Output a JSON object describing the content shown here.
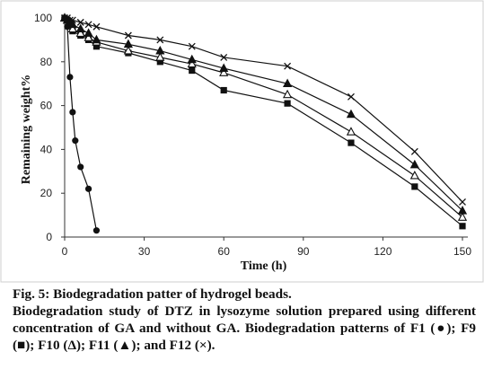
{
  "chart_data": {
    "type": "line",
    "xlabel": "Time (h)",
    "ylabel": "Remaining weight%",
    "xlim": [
      0,
      150
    ],
    "ylim": [
      0,
      100
    ],
    "xticks": [
      0,
      30,
      60,
      90,
      120,
      150
    ],
    "yticks": [
      0,
      20,
      40,
      60,
      80,
      100
    ],
    "grid": false,
    "legend": "none",
    "series": [
      {
        "marker": "circle",
        "color": "#111111",
        "x": [
          0,
          1,
          2,
          3,
          4,
          6,
          9,
          12
        ],
        "y": [
          100,
          96,
          73,
          57,
          44,
          32,
          22,
          3
        ]
      },
      {
        "marker": "square",
        "color": "#111111",
        "x": [
          0,
          1,
          2,
          3,
          6,
          9,
          12,
          24,
          36,
          48,
          60,
          84,
          108,
          132,
          150
        ],
        "y": [
          100,
          99,
          97,
          94,
          92,
          90,
          87,
          84,
          80,
          76,
          67,
          61,
          43,
          23,
          5
        ]
      },
      {
        "marker": "triangle-open",
        "color": "#111111",
        "x": [
          0,
          1,
          2,
          3,
          6,
          9,
          12,
          24,
          36,
          48,
          60,
          84,
          108,
          132,
          150
        ],
        "y": [
          100,
          99,
          98,
          95,
          93,
          91,
          89,
          85,
          82,
          79,
          75,
          65,
          48,
          28,
          9
        ]
      },
      {
        "marker": "triangle",
        "color": "#111111",
        "x": [
          0,
          1,
          2,
          3,
          6,
          9,
          12,
          24,
          36,
          48,
          60,
          84,
          108,
          132,
          150
        ],
        "y": [
          100,
          99,
          98,
          97,
          95,
          93,
          90,
          88,
          85,
          81,
          77,
          70,
          56,
          33,
          12
        ]
      },
      {
        "marker": "x",
        "color": "#111111",
        "x": [
          0,
          1,
          2,
          3,
          6,
          9,
          12,
          24,
          36,
          48,
          60,
          84,
          108,
          132,
          150
        ],
        "y": [
          100,
          100,
          99,
          99,
          98,
          97,
          96,
          92,
          90,
          87,
          82,
          78,
          64,
          39,
          16
        ]
      }
    ]
  },
  "caption": {
    "title": "Fig. 5: Biodegradation patter of hydrogel beads.",
    "body": "Biodegradation study of DTZ in lysozyme solution prepared using different concentration of GA and without GA. Biodegradation patterns of F1 (●); F9 (■); F10 (Δ); F11 (▲); and F12 (×)."
  }
}
